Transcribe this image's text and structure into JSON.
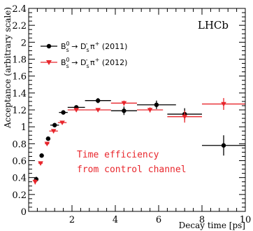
{
  "chart_data": {
    "type": "scatter",
    "brand": "LHCb",
    "xlabel": "Decay time [ps]",
    "ylabel": "Acceptance (arbitrary scale)",
    "xlim": [
      0,
      10
    ],
    "ylim": [
      0,
      2.4
    ],
    "x_ticks": [
      "2",
      "4",
      "6",
      "8",
      "10"
    ],
    "y_ticks": [
      "0",
      "0.2",
      "0.4",
      "0.6",
      "0.8",
      "1",
      "1.2",
      "1.4",
      "1.6",
      "1.8",
      "2",
      "2.2",
      "2.4"
    ],
    "grid": false,
    "legend": "top-left",
    "annotation": [
      "Time efficiency",
      "from control channel"
    ],
    "series": [
      {
        "name": "B_s^0 → D_s^- π^+ (2011)",
        "legend_parts": {
          "b": "B",
          "b_sup": "0",
          "b_sub": "s",
          "arrow": " → D",
          "d_sub": "s",
          "d_sup": "-",
          "pi": " π",
          "pi_sup": "+",
          "year": " (2011)"
        },
        "color": "#000000",
        "marker": "circle",
        "points": [
          {
            "x": 0.35,
            "xerr": 0.05,
            "y": 0.38,
            "yerr": 0.03
          },
          {
            "x": 0.6,
            "xerr": 0.1,
            "y": 0.66,
            "yerr": 0.02
          },
          {
            "x": 0.9,
            "xerr": 0.1,
            "y": 0.86,
            "yerr": 0.02
          },
          {
            "x": 1.2,
            "xerr": 0.2,
            "y": 1.02,
            "yerr": 0.02
          },
          {
            "x": 1.6,
            "xerr": 0.2,
            "y": 1.17,
            "yerr": 0.02
          },
          {
            "x": 2.2,
            "xerr": 0.4,
            "y": 1.23,
            "yerr": 0.02
          },
          {
            "x": 3.2,
            "xerr": 0.6,
            "y": 1.31,
            "yerr": 0.03
          },
          {
            "x": 4.4,
            "xerr": 0.6,
            "y": 1.19,
            "yerr": 0.05
          },
          {
            "x": 5.9,
            "xerr": 0.9,
            "y": 1.26,
            "yerr": 0.05
          },
          {
            "x": 7.2,
            "xerr": 0.8,
            "y": 1.15,
            "yerr": 0.07
          },
          {
            "x": 9.0,
            "xerr": 1.0,
            "y": 0.78,
            "yerr": 0.12
          }
        ]
      },
      {
        "name": "B_s^0 → D_s^- π^+ (2012)",
        "legend_parts": {
          "b": "B",
          "b_sup": "0",
          "b_sub": "s",
          "arrow": " → D",
          "d_sub": "s",
          "d_sup": "-",
          "pi": " π",
          "pi_sup": "+",
          "year": " (2012)"
        },
        "color": "#e8262c",
        "marker": "triangle-down",
        "points": [
          {
            "x": 0.3,
            "xerr": 0.05,
            "y": 0.35,
            "yerr": 0.03
          },
          {
            "x": 0.55,
            "xerr": 0.1,
            "y": 0.57,
            "yerr": 0.02
          },
          {
            "x": 0.85,
            "xerr": 0.1,
            "y": 0.8,
            "yerr": 0.02
          },
          {
            "x": 1.15,
            "xerr": 0.2,
            "y": 0.95,
            "yerr": 0.02
          },
          {
            "x": 1.55,
            "xerr": 0.2,
            "y": 1.05,
            "yerr": 0.02
          },
          {
            "x": 2.2,
            "xerr": 0.4,
            "y": 1.2,
            "yerr": 0.02
          },
          {
            "x": 3.2,
            "xerr": 0.6,
            "y": 1.2,
            "yerr": 0.02
          },
          {
            "x": 4.4,
            "xerr": 0.6,
            "y": 1.28,
            "yerr": 0.03
          },
          {
            "x": 5.6,
            "xerr": 0.6,
            "y": 1.2,
            "yerr": 0.03
          },
          {
            "x": 7.2,
            "xerr": 0.8,
            "y": 1.12,
            "yerr": 0.07
          },
          {
            "x": 9.0,
            "xerr": 1.0,
            "y": 1.27,
            "yerr": 0.07
          }
        ]
      }
    ]
  }
}
